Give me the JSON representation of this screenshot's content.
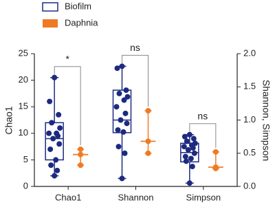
{
  "chart_data": {
    "type": "box",
    "categories": [
      "Chao1",
      "Shannon",
      "Simpson"
    ],
    "category_axes": [
      "y",
      "y2",
      "y2"
    ],
    "ylabel": "Chao1",
    "y2label": "Shannon, Simpson",
    "ylim": [
      0,
      25
    ],
    "yticks": [
      0,
      5,
      10,
      15,
      20,
      25
    ],
    "y2lim": [
      0,
      2
    ],
    "y2ticks": [
      {
        "value": 0,
        "label": "0.0"
      },
      0.5,
      {
        "value": 1,
        "label": "1.0"
      },
      1.5,
      {
        "value": 2,
        "label": "2.0"
      }
    ],
    "annotations": [
      "*",
      "ns",
      "ns"
    ],
    "series": [
      {
        "name": "Biofilm",
        "color": "#1c2a80",
        "boxes": [
          {
            "min": 2,
            "q1": 5,
            "median": 9,
            "q3": 12,
            "max": 20.5,
            "points": [
              20.5,
              16,
              13.5,
              12,
              11,
              10,
              10,
              9.5,
              9,
              8,
              7,
              5,
              4,
              3,
              2
            ]
          },
          {
            "min": 0.12,
            "q1": 0.81,
            "median": 1.0,
            "q3": 1.45,
            "max": 1.81,
            "points": [
              1.81,
              1.78,
              1.45,
              1.4,
              1.35,
              1.3,
              1.2,
              1.1,
              1.0,
              0.95,
              0.85,
              0.82,
              0.6,
              0.5,
              0.12
            ]
          },
          {
            "min": 0.05,
            "q1": 0.37,
            "median": 0.51,
            "q3": 0.65,
            "max": 0.78,
            "points": [
              0.78,
              0.75,
              0.72,
              0.68,
              0.65,
              0.62,
              0.6,
              0.58,
              0.55,
              0.5,
              0.45,
              0.42,
              0.38,
              0.3,
              0.05
            ]
          }
        ]
      },
      {
        "name": "Daphnia",
        "color": "#f07a22",
        "boxes": [
          {
            "min": 4,
            "median": 6,
            "max": 7,
            "points": [
              7,
              6,
              4
            ]
          },
          {
            "min": 0.5,
            "median": 0.68,
            "max": 1.14,
            "points": [
              1.14,
              0.68,
              0.5
            ]
          },
          {
            "min": 0.27,
            "median": 0.29,
            "max": 0.52,
            "points": [
              0.52,
              0.29,
              0.27
            ]
          }
        ]
      }
    ]
  }
}
